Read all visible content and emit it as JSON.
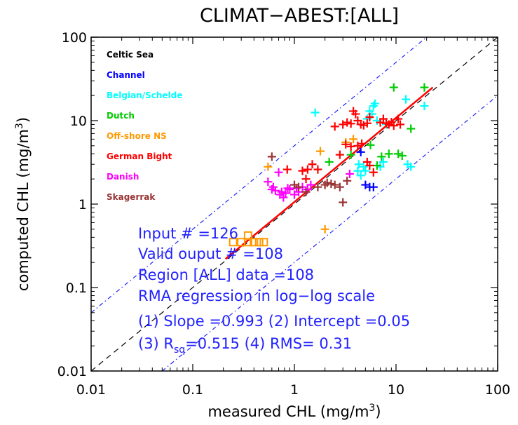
{
  "chart_data": {
    "type": "scatter",
    "title": "CLIMAT−ABEST:[ALL]",
    "xlabel": "measured CHL (mg/m3)",
    "ylabel": "computed CHL (mg/m3)",
    "x_scale": "log",
    "y_scale": "log",
    "xlim": [
      0.01,
      100
    ],
    "ylim": [
      0.01,
      100
    ],
    "x_ticks": [
      {
        "value": 0.01,
        "label": "0.01"
      },
      {
        "value": 0.1,
        "label": "0.1"
      },
      {
        "value": 1,
        "label": "1"
      },
      {
        "value": 10,
        "label": "10"
      },
      {
        "value": 100,
        "label": "100"
      }
    ],
    "y_ticks": [
      {
        "value": 0.01,
        "label": "0.01"
      },
      {
        "value": 0.1,
        "label": "0.1"
      },
      {
        "value": 1,
        "label": "1"
      },
      {
        "value": 10,
        "label": "10"
      },
      {
        "value": 100,
        "label": "100"
      }
    ],
    "legend_position": "top-left",
    "series": [
      {
        "name": "Celtic Sea",
        "color": "#000000",
        "marker": "plus",
        "points": []
      },
      {
        "name": "Channel",
        "color": "#0000ff",
        "marker": "plus",
        "points": [
          [
            4.5,
            4.2
          ],
          [
            5.0,
            1.7
          ],
          [
            5.5,
            1.6
          ],
          [
            6.0,
            1.6
          ]
        ]
      },
      {
        "name": "Belgian/Schelde",
        "color": "#00ffff",
        "marker": "plus",
        "points": [
          [
            1.6,
            12.5
          ],
          [
            4.2,
            2.5
          ],
          [
            4.3,
            3.0
          ],
          [
            4.5,
            2.2
          ],
          [
            4.8,
            2.8
          ],
          [
            5.0,
            2.5
          ],
          [
            5.2,
            10.5
          ],
          [
            5.5,
            13.0
          ],
          [
            5.8,
            12.0
          ],
          [
            6.0,
            15.0
          ],
          [
            6.2,
            16.0
          ],
          [
            6.5,
            10.0
          ],
          [
            7.0,
            2.8
          ],
          [
            7.5,
            3.2
          ],
          [
            8.0,
            9.0
          ],
          [
            12.5,
            18.0
          ],
          [
            13.0,
            3.0
          ],
          [
            14.0,
            2.8
          ],
          [
            19.0,
            15.0
          ]
        ]
      },
      {
        "name": "Dutch",
        "color": "#00cc00",
        "marker": "plus",
        "points": [
          [
            2.2,
            3.2
          ],
          [
            3.6,
            3.9
          ],
          [
            5.6,
            5.1
          ],
          [
            6.5,
            2.9
          ],
          [
            7.2,
            3.7
          ],
          [
            8.5,
            4.0
          ],
          [
            9.5,
            25.0
          ],
          [
            10.5,
            4.0
          ],
          [
            11.5,
            3.8
          ],
          [
            14.0,
            8.0
          ],
          [
            19.0,
            25.0
          ]
        ]
      },
      {
        "name": "Off-shore NS",
        "color": "#ff9900",
        "marker": "plus",
        "points": [
          [
            2.0,
            0.5
          ],
          [
            1.05,
            1.55
          ],
          [
            1.8,
            4.3
          ],
          [
            3.2,
            5.5
          ],
          [
            3.8,
            6.0
          ],
          [
            0.55,
            2.8
          ]
        ],
        "boxes": [
          [
            0.25,
            0.35
          ],
          [
            0.3,
            0.35
          ],
          [
            0.35,
            0.35
          ],
          [
            0.4,
            0.35
          ],
          [
            0.45,
            0.35
          ],
          [
            0.5,
            0.35
          ],
          [
            0.35,
            0.42
          ]
        ]
      },
      {
        "name": "German Bight",
        "color": "#ff0000",
        "marker": "plus",
        "points": [
          [
            0.85,
            2.6
          ],
          [
            1.2,
            2.5
          ],
          [
            1.3,
            2.0
          ],
          [
            1.35,
            2.6
          ],
          [
            1.5,
            3.0
          ],
          [
            1.7,
            2.6
          ],
          [
            2.5,
            8.5
          ],
          [
            3.0,
            9.0
          ],
          [
            3.3,
            9.5
          ],
          [
            3.6,
            9.2
          ],
          [
            3.8,
            13.0
          ],
          [
            4.0,
            12.0
          ],
          [
            4.2,
            10.0
          ],
          [
            4.5,
            9.0
          ],
          [
            4.8,
            8.8
          ],
          [
            5.2,
            9.3
          ],
          [
            5.5,
            11.0
          ],
          [
            6.0,
            2.4
          ],
          [
            7.0,
            9.5
          ],
          [
            7.5,
            10.5
          ],
          [
            8.0,
            9.3
          ],
          [
            8.5,
            9.0
          ],
          [
            9.0,
            9.6
          ],
          [
            9.5,
            8.7
          ],
          [
            10.5,
            10.5
          ],
          [
            11.0,
            9.0
          ],
          [
            3.2,
            5.2
          ],
          [
            3.6,
            4.9
          ],
          [
            4.2,
            5.0
          ],
          [
            4.6,
            5.3
          ],
          [
            5.2,
            3.2
          ],
          [
            5.5,
            2.9
          ],
          [
            2.8,
            3.9
          ]
        ]
      },
      {
        "name": "Danish",
        "color": "#ff00ff",
        "marker": "plus",
        "points": [
          [
            0.55,
            1.85
          ],
          [
            0.6,
            1.5
          ],
          [
            0.62,
            1.6
          ],
          [
            0.65,
            1.45
          ],
          [
            0.72,
            1.3
          ],
          [
            0.75,
            1.4
          ],
          [
            0.78,
            1.2
          ],
          [
            0.82,
            1.35
          ],
          [
            0.86,
            1.55
          ],
          [
            0.9,
            1.5
          ],
          [
            1.0,
            1.3
          ],
          [
            1.05,
            1.55
          ],
          [
            1.1,
            1.4
          ],
          [
            1.2,
            1.6
          ],
          [
            1.35,
            1.5
          ],
          [
            1.45,
            1.7
          ],
          [
            0.7,
            2.4
          ],
          [
            3.5,
            2.3
          ]
        ]
      },
      {
        "name": "Skagerrak",
        "color": "#993333",
        "marker": "plus",
        "points": [
          [
            0.6,
            3.7
          ],
          [
            1.0,
            1.7
          ],
          [
            1.1,
            1.6
          ],
          [
            1.3,
            1.4
          ],
          [
            1.7,
            1.6
          ],
          [
            2.0,
            1.7
          ],
          [
            2.1,
            1.8
          ],
          [
            2.3,
            1.75
          ],
          [
            2.5,
            1.7
          ],
          [
            2.8,
            1.6
          ],
          [
            3.0,
            1.05
          ],
          [
            3.3,
            1.9
          ]
        ]
      }
    ],
    "lines": [
      {
        "kind": "1:1",
        "style": "dashed",
        "color": "#000000",
        "x": [
          0.01,
          100
        ],
        "y": [
          0.01,
          100
        ]
      },
      {
        "kind": "upper bound",
        "style": "dash-dot",
        "color": "#2222ff",
        "x": [
          0.01,
          20
        ],
        "y": [
          0.05,
          100
        ]
      },
      {
        "kind": "lower bound",
        "style": "dash-dot",
        "color": "#2222ff",
        "x": [
          0.05,
          100
        ],
        "y": [
          0.01,
          20
        ]
      },
      {
        "kind": "RMA regression",
        "style": "solid",
        "color": "#ff0000",
        "x": [
          0.21,
          23
        ],
        "y": [
          0.22,
          25
        ]
      }
    ],
    "annotations": [
      "Input # =126",
      "Valid ouput # =108",
      "Region [ALL] data =108",
      "RMA regression in log−log scale",
      "(1) Slope =0.993  (2) Intercept =0.05",
      "(3) R",
      "sq",
      "=0.515  (4) RMS= 0.31"
    ]
  }
}
